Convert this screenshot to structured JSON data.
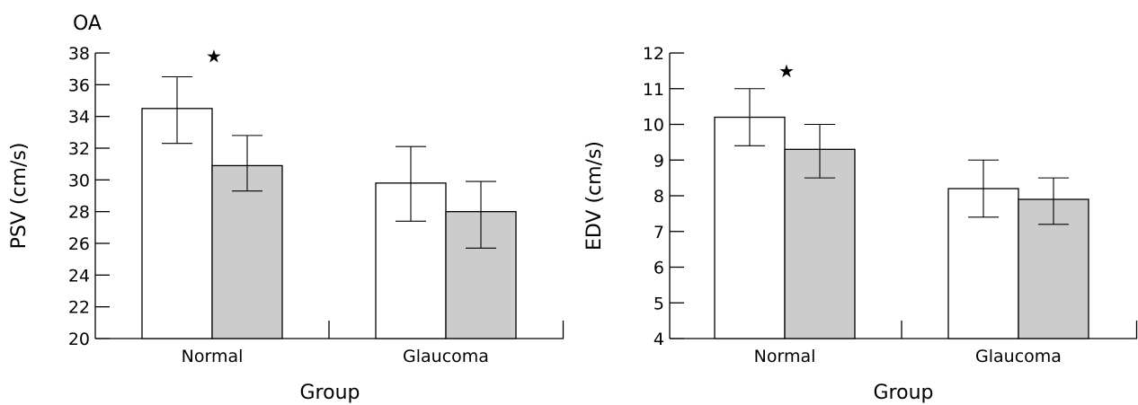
{
  "panel_label": "OA",
  "chart_data": [
    {
      "type": "bar",
      "title": "",
      "xlabel": "Group",
      "ylabel": "PSV (cm/s)",
      "categories": [
        "Normal",
        "Glaucoma"
      ],
      "ylim": [
        20,
        38
      ],
      "yticks": [
        "20",
        "22",
        "24",
        "26",
        "28",
        "30",
        "32",
        "34",
        "36",
        "38"
      ],
      "series": [
        {
          "values": [
            34.5,
            29.8
          ],
          "error_low": [
            32.3,
            27.4
          ],
          "error_high": [
            36.5,
            32.1
          ],
          "fill": "#ffffff"
        },
        {
          "values": [
            30.9,
            28.0
          ],
          "error_low": [
            29.3,
            25.7
          ],
          "error_high": [
            32.8,
            29.9
          ],
          "fill": "#cccccc"
        }
      ],
      "annotations": [
        {
          "text": "★",
          "category": "Normal",
          "y": 37.8
        }
      ],
      "grid": false,
      "legend": "none"
    },
    {
      "type": "bar",
      "title": "",
      "xlabel": "Group",
      "ylabel": "EDV (cm/s)",
      "categories": [
        "Normal",
        "Glaucoma"
      ],
      "ylim": [
        4,
        12
      ],
      "yticks": [
        "4",
        "5",
        "6",
        "7",
        "8",
        "9",
        "10",
        "11",
        "12"
      ],
      "series": [
        {
          "values": [
            10.2,
            8.2
          ],
          "error_low": [
            9.4,
            7.4
          ],
          "error_high": [
            11.0,
            9.0
          ],
          "fill": "#ffffff"
        },
        {
          "values": [
            9.3,
            7.9
          ],
          "error_low": [
            8.5,
            7.2
          ],
          "error_high": [
            10.0,
            8.5
          ],
          "fill": "#cccccc"
        }
      ],
      "annotations": [
        {
          "text": "★",
          "category": "Normal",
          "y": 11.5
        }
      ],
      "grid": false,
      "legend": "none"
    }
  ]
}
